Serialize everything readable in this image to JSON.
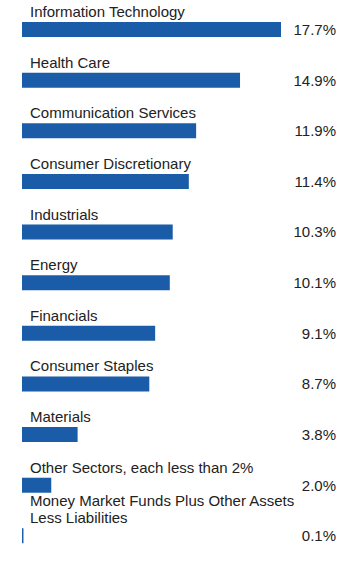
{
  "chart_data": {
    "type": "bar",
    "orientation": "horizontal",
    "categories": [
      "Information Technology",
      "Health Care",
      "Communication Services",
      "Consumer Discretionary",
      "Industrials",
      "Energy",
      "Financials",
      "Consumer Staples",
      "Materials",
      "Other Sectors, each less than 2%",
      "Money Market Funds Plus Other Assets Less Liabilities"
    ],
    "values": [
      17.7,
      14.9,
      11.9,
      11.4,
      10.3,
      10.1,
      9.1,
      8.7,
      3.8,
      2.0,
      0.1
    ],
    "value_labels": [
      "17.7%",
      "14.9%",
      "11.9%",
      "11.4%",
      "10.3%",
      "10.1%",
      "9.1%",
      "8.7%",
      "3.8%",
      "2.0%",
      "0.1%"
    ],
    "color": "#1a5ca8",
    "xlim": [
      0,
      17.7
    ],
    "data_labels": true,
    "tick_labels": false
  }
}
